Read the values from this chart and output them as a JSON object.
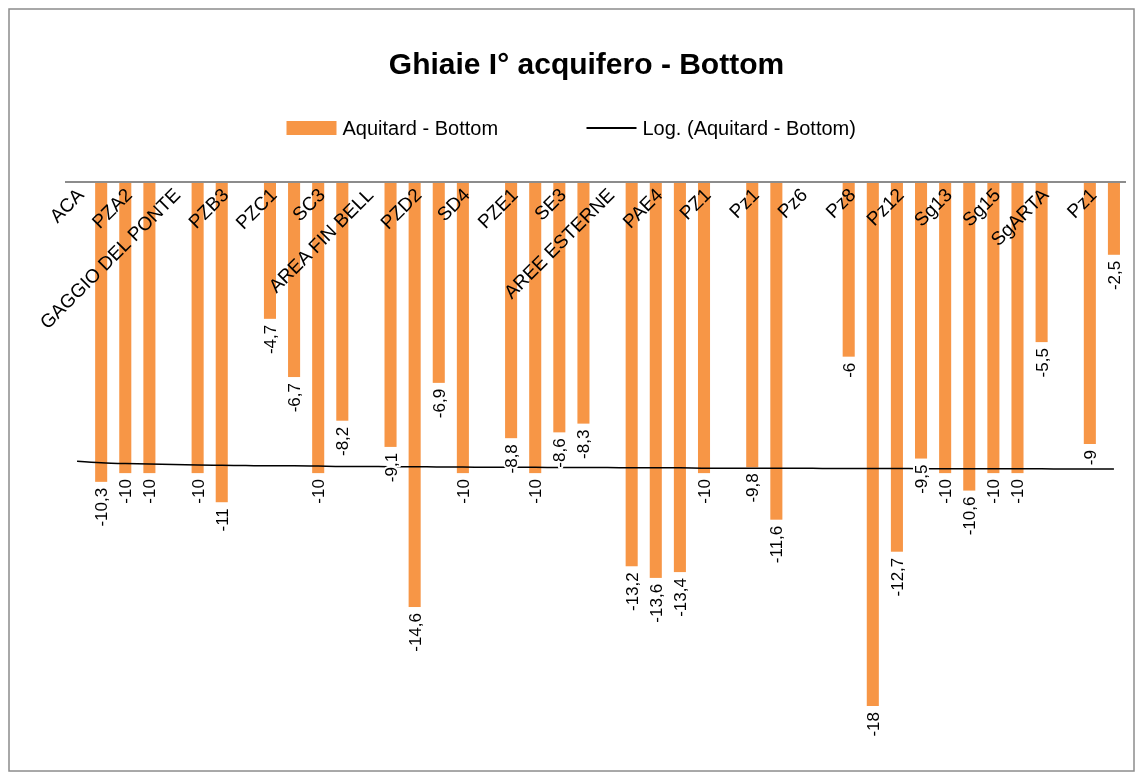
{
  "chart_data": {
    "type": "bar",
    "title": "Ghiaie I° acquifero - Bottom",
    "legend": "top",
    "categories": [
      "ACA",
      null,
      "PZA2",
      null,
      "GAGGIO DEL PONTE",
      null,
      "PZB3",
      null,
      "PZC1",
      null,
      "SC3",
      null,
      "AREA FIN BELL",
      null,
      "PZD2",
      null,
      "SD4",
      null,
      "PZE1",
      null,
      "SE3",
      null,
      "AREE ESTERNE",
      null,
      "PAE4",
      null,
      "PZ1",
      null,
      "Pz1",
      null,
      "Pz6",
      null,
      "Pz8",
      null,
      "Pz12",
      null,
      "Sg13",
      null,
      "Sg15",
      null,
      "SgARTA",
      null,
      "Pz1",
      null
    ],
    "series": [
      {
        "name": "Aquitard - Bottom",
        "color": "#f79646",
        "values": [
          null,
          -10.3,
          -10,
          -10,
          null,
          -10,
          -11,
          null,
          -4.7,
          -6.7,
          -10,
          -8.2,
          null,
          -9.1,
          -14.6,
          -6.9,
          -10,
          null,
          -8.8,
          -10,
          -8.6,
          -8.3,
          null,
          -13.2,
          -13.6,
          -13.4,
          -10,
          null,
          -9.8,
          -11.6,
          null,
          null,
          -6,
          -18,
          -12.7,
          -9.5,
          -10,
          -10.6,
          -10,
          -10,
          -5.5,
          null,
          -9,
          -2.5
        ],
        "value_labels": [
          null,
          "-10,3",
          "-10",
          "-10",
          null,
          "-10",
          "-11",
          null,
          "-4,7",
          "-6,7",
          "-10",
          "-8,2",
          null,
          "-9,1",
          "-14,6",
          "-6,9",
          "-10",
          null,
          "-8,8",
          "-10",
          "-8,6",
          "-8,3",
          null,
          "-13,2",
          "-13,6",
          "-13,4",
          "-10",
          null,
          "-9,8",
          "-11,6",
          null,
          null,
          "-6",
          "-18",
          "-12,7",
          "-9,5",
          "-10",
          "-10,6",
          "-10",
          "-10",
          "-5,5",
          null,
          "-9",
          "-2,5"
        ]
      },
      {
        "name": "Log. (Aquitard - Bottom)",
        "type": "line",
        "color": "#000000",
        "values": [
          -9.59,
          -9.64,
          -9.67,
          -9.69,
          -9.7,
          -9.72,
          -9.73,
          -9.74,
          -9.75,
          -9.75,
          -9.76,
          -9.77,
          -9.77,
          -9.78,
          -9.78,
          -9.79,
          -9.79,
          -9.8,
          -9.8,
          -9.8,
          -9.81,
          -9.81,
          -9.81,
          -9.82,
          -9.82,
          -9.82,
          -9.83,
          -9.83,
          -9.83,
          -9.83,
          -9.83,
          -9.84,
          -9.84,
          -9.84,
          -9.84,
          -9.85,
          -9.85,
          -9.85,
          -9.85,
          -9.85,
          -9.85,
          -9.86,
          -9.86,
          -9.86
        ]
      }
    ]
  }
}
